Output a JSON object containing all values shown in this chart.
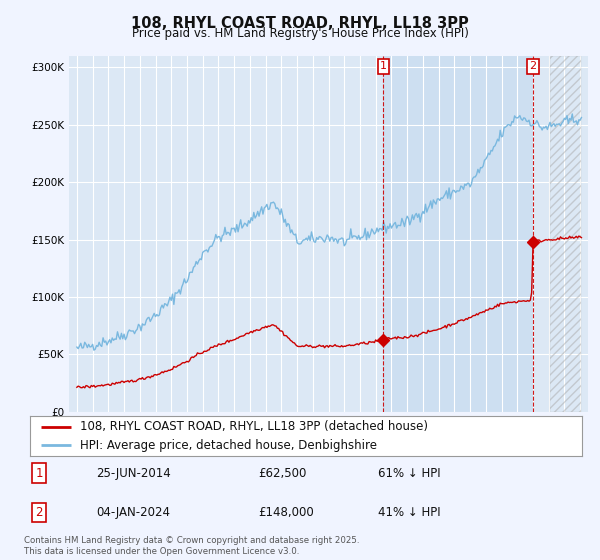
{
  "title": "108, RHYL COAST ROAD, RHYL, LL18 3PP",
  "subtitle": "Price paid vs. HM Land Registry's House Price Index (HPI)",
  "hpi_label": "HPI: Average price, detached house, Denbighshire",
  "property_label": "108, RHYL COAST ROAD, RHYL, LL18 3PP (detached house)",
  "annotation1_date": "25-JUN-2014",
  "annotation1_price": "£62,500",
  "annotation1_hpi": "61% ↓ HPI",
  "annotation2_date": "04-JAN-2024",
  "annotation2_price": "£148,000",
  "annotation2_hpi": "41% ↓ HPI",
  "footer": "Contains HM Land Registry data © Crown copyright and database right 2025.\nThis data is licensed under the Open Government Licence v3.0.",
  "hpi_color": "#7ab8df",
  "property_color": "#cc0000",
  "vline_color": "#cc0000",
  "background_color": "#f0f4ff",
  "plot_bg_color": "#dce8f5",
  "shade_color": "#c8dcf0",
  "grid_color": "#ffffff",
  "ylim": [
    0,
    310000
  ],
  "yticks": [
    0,
    50000,
    100000,
    150000,
    200000,
    250000,
    300000
  ],
  "xlim_start": 1994.5,
  "xlim_end": 2027.5,
  "anno1_x": 2014.48,
  "anno2_x": 2024.01,
  "anno1_y_property": 62500,
  "anno2_y_property": 148000,
  "hatch_start": 2025.0
}
